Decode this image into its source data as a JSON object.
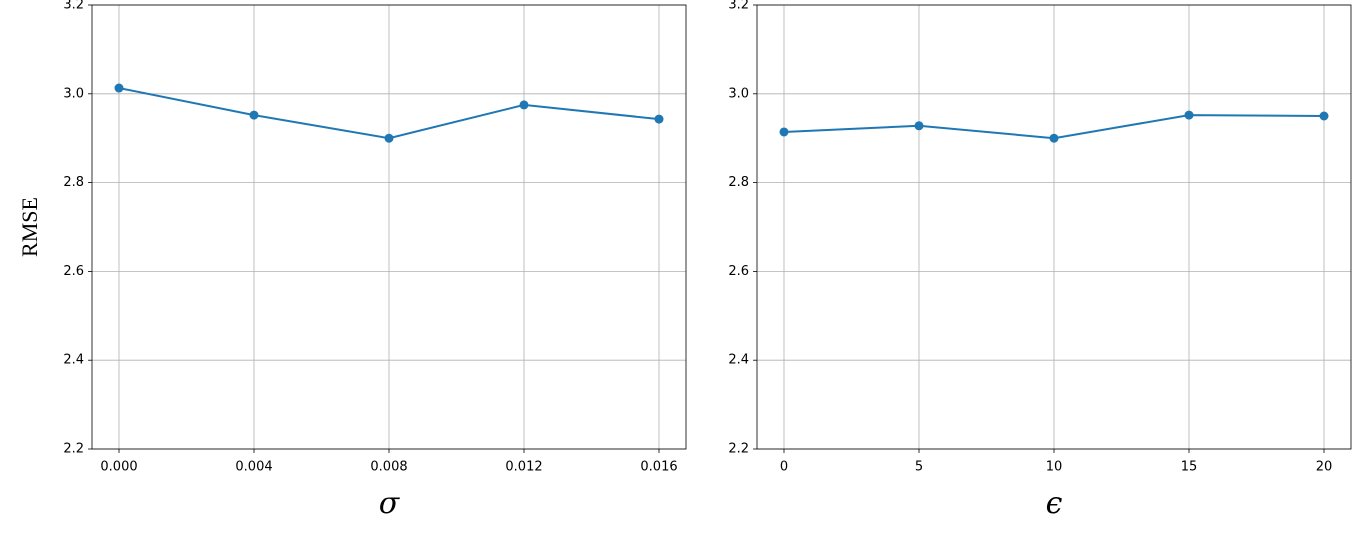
{
  "chart_data": [
    {
      "type": "line",
      "ylabel": "RMSE",
      "xlabel": "σ",
      "x": [
        0,
        0.004,
        0.008,
        0.012,
        0.016
      ],
      "series": [
        {
          "color": "#1f77b4",
          "values": [
            3.013,
            2.952,
            2.9,
            2.975,
            2.943
          ]
        }
      ],
      "xlim": [
        -0.0008,
        0.0168
      ],
      "xticks": [
        {
          "value": 0,
          "label": "0.000"
        },
        0.004,
        0.008,
        0.012,
        0.016
      ],
      "ylim": [
        2.2,
        3.2
      ],
      "yticks": [
        2.2,
        2.4,
        2.6,
        2.8,
        {
          "value": 3,
          "label": "3.0"
        },
        3.2
      ],
      "grid": true
    },
    {
      "type": "line",
      "xlabel": "ϵ",
      "x": [
        0,
        5,
        10,
        15,
        20
      ],
      "series": [
        {
          "color": "#1f77b4",
          "values": [
            2.914,
            2.928,
            2.9,
            2.952,
            2.95
          ]
        }
      ],
      "xlim": [
        -1,
        21
      ],
      "xticks": [
        0,
        5,
        10,
        15,
        20
      ],
      "ylim": [
        2.2,
        3.2
      ],
      "yticks": [
        2.2,
        2.4,
        2.6,
        2.8,
        {
          "value": 3,
          "label": "3.0"
        },
        3.2
      ],
      "grid": true
    }
  ]
}
